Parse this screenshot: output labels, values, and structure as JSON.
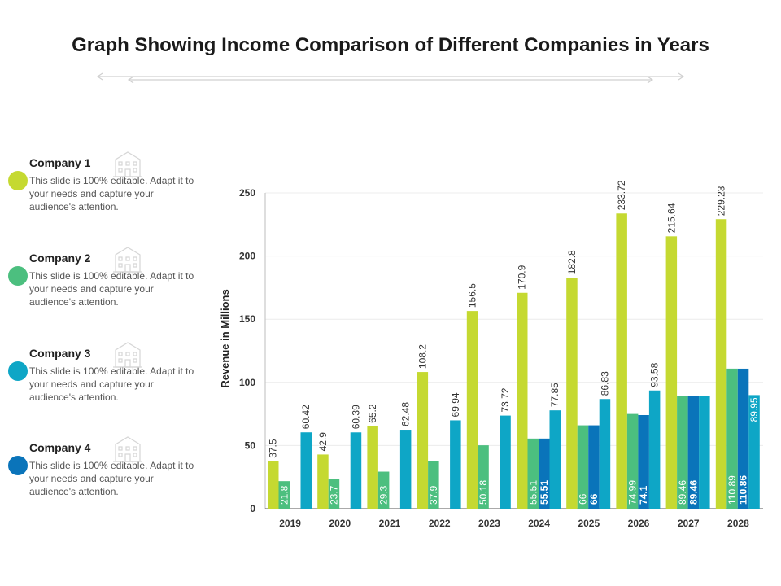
{
  "page_title": "Graph Showing Income Comparison of Different Companies in Years",
  "legend": [
    {
      "name": "Company 1",
      "description": "This slide is 100% editable. Adapt it to your needs and capture your audience's attention.",
      "color": "#C5D931",
      "icon": "building-icon"
    },
    {
      "name": "Company 2",
      "description": "This slide is 100% editable. Adapt it to your needs and capture your audience's attention.",
      "color": "#4CBF7F",
      "icon": "building-icon"
    },
    {
      "name": "Company 3",
      "description": "This slide is 100% editable. Adapt it to your needs and capture your audience's attention.",
      "color": "#0EA6C6",
      "icon": "building-icon"
    },
    {
      "name": "Company 4",
      "description": "This slide is 100% editable. Adapt it to your needs and capture your audience's attention.",
      "color": "#0A74BA",
      "icon": "building-icon"
    }
  ],
  "chart_data": {
    "type": "bar",
    "title": "Graph Showing Income Comparison of Different Companies in Years",
    "xlabel": "",
    "ylabel": "Revenue in Millions",
    "ylim": [
      0,
      250
    ],
    "yticks": [
      0,
      50,
      100,
      150,
      200,
      250
    ],
    "grid": true,
    "categories": [
      "2019",
      "2020",
      "2021",
      "2022",
      "2023",
      "2024",
      "2025",
      "2026",
      "2027",
      "2028"
    ],
    "series": [
      {
        "name": "Company 1",
        "color": "#C5D931",
        "values": [
          37.5,
          42.9,
          65.2,
          108.2,
          156.5,
          170.9,
          182.8,
          233.72,
          215.64,
          229.23
        ],
        "labels": [
          "37.5",
          "42.9",
          "65.2",
          "108.2",
          "156.5",
          "170.9",
          "182.8",
          "233.72",
          "215.64",
          "229.23"
        ]
      },
      {
        "name": "Company 2",
        "color": "#4CBF7F",
        "values": [
          21.8,
          23.7,
          29.3,
          37.9,
          50.18,
          55.51,
          66,
          74.99,
          89.46,
          110.89
        ],
        "labels": [
          "21.8",
          "23.7",
          "29.3",
          "37.9",
          "50.18",
          "55.51",
          "66",
          "74.99",
          "89.46",
          "110.89"
        ]
      },
      {
        "name": "Company 4",
        "color": "#0A74BA",
        "values": [
          null,
          null,
          null,
          null,
          null,
          55.51,
          66,
          74.1,
          89.46,
          110.86
        ],
        "labels": [
          "",
          "",
          "",
          "",
          "",
          "55.51",
          "66",
          "74.1",
          "89.46",
          "110.86"
        ]
      },
      {
        "name": "Company 3",
        "color": "#0EA6C6",
        "values": [
          60.42,
          60.39,
          62.48,
          69.94,
          73.72,
          77.85,
          86.83,
          93.58,
          89.46,
          89.95
        ],
        "labels": [
          "60.42",
          "60.39",
          "62.48",
          "69.94",
          "73.72",
          "77.85",
          "86.83",
          "93.58",
          "",
          "89.95"
        ]
      }
    ]
  }
}
